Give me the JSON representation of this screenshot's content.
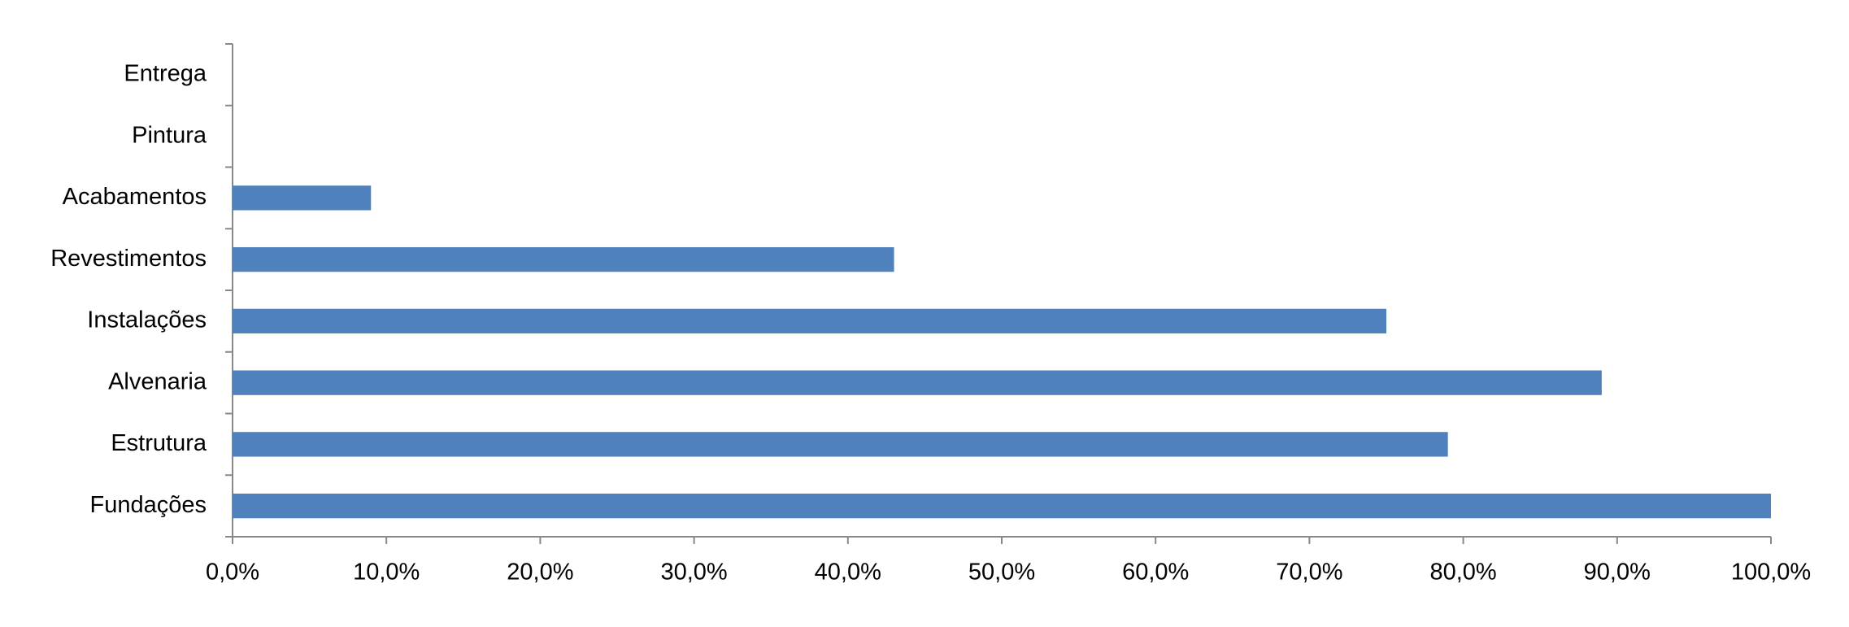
{
  "chart_data": {
    "type": "hbar",
    "categories": [
      "Fundações",
      "Estrutura",
      "Alvenaria",
      "Instalações",
      "Revestimentos",
      "Acabamentos",
      "Pintura",
      "Entrega"
    ],
    "values": [
      100,
      79,
      89,
      75,
      43,
      9,
      0,
      0
    ],
    "color": "#4f81bd",
    "xlim": [
      0,
      100
    ],
    "xticks": [
      {
        "value": 0,
        "label": "0,0%"
      },
      {
        "value": 10,
        "label": "10,0%"
      },
      {
        "value": 20,
        "label": "20,0%"
      },
      {
        "value": 30,
        "label": "30,0%"
      },
      {
        "value": 40,
        "label": "40,0%"
      },
      {
        "value": 50,
        "label": "50,0%"
      },
      {
        "value": 60,
        "label": "60,0%"
      },
      {
        "value": 70,
        "label": "70,0%"
      },
      {
        "value": 80,
        "label": "80,0%"
      },
      {
        "value": 90,
        "label": "90,0%"
      },
      {
        "value": 100,
        "label": "100,0%"
      }
    ],
    "grid": false
  }
}
